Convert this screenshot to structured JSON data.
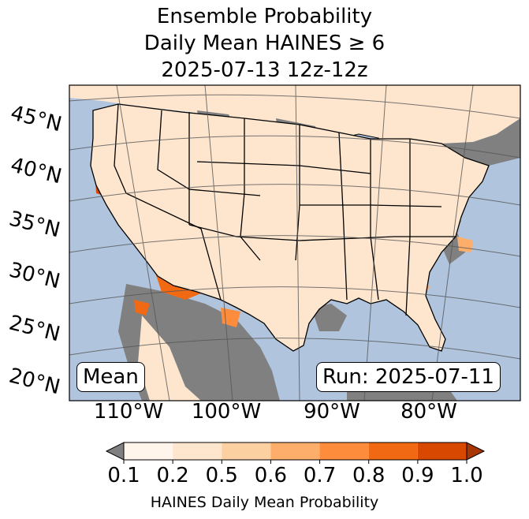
{
  "title": {
    "line1": "Ensemble Probability",
    "line2": "Daily Mean HAINES ≥ 6",
    "line3": "2025-07-13 12z-12z"
  },
  "map": {
    "projection": "conic",
    "region": "Continental United States",
    "colors": {
      "ocean": "#b0c4de",
      "land_below_threshold": "#808080",
      "border": "#000000",
      "graticule": "#555555"
    },
    "lat_labels": [
      "45°N",
      "40°N",
      "35°N",
      "30°N",
      "25°N",
      "20°N"
    ],
    "lon_labels": [
      "110°W",
      "100°W",
      "90°W",
      "80°W"
    ],
    "mean_label": "Mean",
    "run_label": "Run: 2025-07-11"
  },
  "colorbar": {
    "title": "HAINES Daily Mean Probability",
    "ticks": [
      "0.1",
      "0.2",
      "0.5",
      "0.6",
      "0.7",
      "0.8",
      "0.9",
      "1.0"
    ],
    "under_color": "#808080",
    "over_color": "#a63603",
    "colors": [
      "#fff5eb",
      "#fee6ce",
      "#fdd0a2",
      "#fdae6b",
      "#fd8d3c",
      "#f16913",
      "#d94801"
    ],
    "extend": "both"
  }
}
